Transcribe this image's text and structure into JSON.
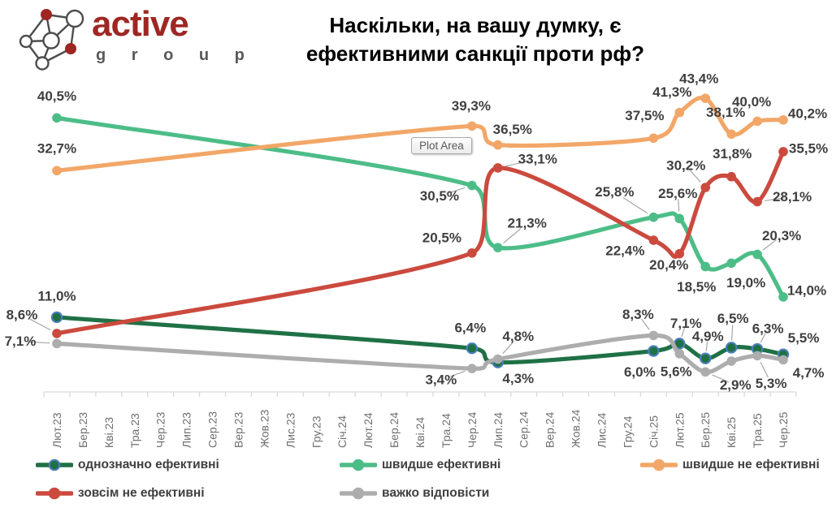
{
  "header": {
    "logo": {
      "brand": "active",
      "sub": "g r o u p",
      "brand_color": "#9E2723",
      "sub_color": "#58595B"
    },
    "title_line1": "Наскільки, на вашу думку, є",
    "title_line2": "ефективними санкції проти рф?"
  },
  "plot_area_tooltip": {
    "label": "Plot Area"
  },
  "axis": {
    "line_color": "#D9D9D9",
    "label_color": "#6F6F6F"
  },
  "label_color": "#3F3F3F",
  "leader_color": "#A6A6A6",
  "chart_data": {
    "type": "line",
    "title": "Наскільки, на вашу думку, є ефективними санкції проти рф?",
    "xlabel": "",
    "ylabel": "",
    "value_suffix": "%",
    "decimal_separator": ",",
    "ylim": [
      0,
      46
    ],
    "grid": false,
    "smoothed": true,
    "legend_position": "bottom",
    "categories": [
      "Лют.23",
      "Бер.23",
      "Кві.23",
      "Тра.23",
      "Чер.23",
      "Лип.23",
      "Сер.23",
      "Вер.23",
      "Жов.23",
      "Лис.23",
      "Гру.23",
      "Січ.24",
      "Лют.24",
      "Бер.24",
      "Кві.24",
      "Тра.24",
      "Чер.24",
      "Лип.24",
      "Сер.24",
      "Вер.24",
      "Жов.24",
      "Лис.24",
      "Гру.24",
      "Січ.25",
      "Лют.25",
      "Бер.25",
      "Кві.25",
      "Тра.25",
      "Чер.25"
    ],
    "series": [
      {
        "name": "однозначно ефективні",
        "color": "#1F7145",
        "marker_ring": "#4E7FBE",
        "points": [
          {
            "category": "Лют.23",
            "value": 11.0,
            "label": "11,0%",
            "dx": 0,
            "dy": -26,
            "leader": false
          },
          {
            "category": "Чер.24",
            "value": 6.4,
            "label": "6,4%",
            "dx": -2,
            "dy": -25,
            "leader": false
          },
          {
            "category": "Лип.24",
            "value": 4.3,
            "label": "4,3%",
            "dx": 25,
            "dy": 20,
            "leader": false
          },
          {
            "category": "Січ.25",
            "value": 6.0,
            "label": "6,0%",
            "dx": -17,
            "dy": 26,
            "leader": false
          },
          {
            "category": "Лют.25",
            "value": 7.1,
            "label": "7,1%",
            "dx": 8,
            "dy": -25,
            "leader": true
          },
          {
            "category": "Бер.25",
            "value": 4.9,
            "label": "4,9%",
            "dx": 3,
            "dy": -27,
            "leader": true
          },
          {
            "category": "Кві.25",
            "value": 6.5,
            "label": "6,5%",
            "dx": 2,
            "dy": -36,
            "leader": true
          },
          {
            "category": "Тра.25",
            "value": 6.3,
            "label": "6,3%",
            "dx": 13,
            "dy": -25,
            "leader": true
          },
          {
            "category": "Чер.25",
            "value": 5.5,
            "label": "5,5%",
            "dx": 25,
            "dy": -20,
            "leader": false
          }
        ]
      },
      {
        "name": "швидше ефективні",
        "color": "#4DBD88",
        "points": [
          {
            "category": "Лют.23",
            "value": 40.5,
            "label": "40,5%",
            "dx": 0,
            "dy": -27,
            "leader": false
          },
          {
            "category": "Чер.24",
            "value": 30.5,
            "label": "30,5%",
            "dx": -40,
            "dy": 13,
            "leader": true
          },
          {
            "category": "Лип.24",
            "value": 21.3,
            "label": "21,3%",
            "dx": 36,
            "dy": -30,
            "leader": true
          },
          {
            "category": "Січ.25",
            "value": 25.8,
            "label": "25,8%",
            "dx": -48,
            "dy": -31,
            "leader": true
          },
          {
            "category": "Лют.25",
            "value": 25.6,
            "label": "25,6%",
            "dx": -2,
            "dy": -31,
            "leader": true
          },
          {
            "category": "Бер.25",
            "value": 18.5,
            "label": "18,5%",
            "dx": -11,
            "dy": 25,
            "leader": false
          },
          {
            "category": "Кві.25",
            "value": 19.0,
            "label": "19,0%",
            "dx": 18,
            "dy": 24,
            "leader": false
          },
          {
            "category": "Тра.25",
            "value": 20.3,
            "label": "20,3%",
            "dx": 30,
            "dy": -23,
            "leader": true
          },
          {
            "category": "Чер.25",
            "value": 14.0,
            "label": "14,0%",
            "dx": 29,
            "dy": -8,
            "leader": false
          }
        ]
      },
      {
        "name": "швидше не ефективні",
        "color": "#F2A768",
        "points": [
          {
            "category": "Лют.23",
            "value": 32.7,
            "label": "32,7%",
            "dx": 0,
            "dy": -27,
            "leader": false
          },
          {
            "category": "Чер.24",
            "value": 39.3,
            "label": "39,3%",
            "dx": -1,
            "dy": -25,
            "leader": false
          },
          {
            "category": "Лип.24",
            "value": 36.5,
            "label": "36,5%",
            "dx": 18,
            "dy": -19,
            "leader": false
          },
          {
            "category": "Січ.25",
            "value": 37.5,
            "label": "37,5%",
            "dx": -11,
            "dy": -28,
            "leader": false
          },
          {
            "category": "Лют.25",
            "value": 41.3,
            "label": "41,3%",
            "dx": -9,
            "dy": -25,
            "leader": false
          },
          {
            "category": "Бер.25",
            "value": 43.4,
            "label": "43,4%",
            "dx": -8,
            "dy": -24,
            "leader": false
          },
          {
            "category": "Кві.25",
            "value": 38.1,
            "label": "38,1%",
            "dx": -7,
            "dy": -27,
            "leader": false
          },
          {
            "category": "Тра.25",
            "value": 40.0,
            "label": "40,0%",
            "dx": -7,
            "dy": -24,
            "leader": false
          },
          {
            "category": "Чер.25",
            "value": 40.2,
            "label": "40,2%",
            "dx": 30,
            "dy": -8,
            "leader": false
          }
        ]
      },
      {
        "name": "зовсім не ефективні",
        "color": "#CB4A3E",
        "points": [
          {
            "category": "Лют.23",
            "value": 8.6,
            "label": "8,6%",
            "dx": -43,
            "dy": -23,
            "leader": true
          },
          {
            "category": "Чер.24",
            "value": 20.5,
            "label": "20,5%",
            "dx": -37,
            "dy": -19,
            "leader": false
          },
          {
            "category": "Лип.24",
            "value": 33.1,
            "label": "33,1%",
            "dx": 49,
            "dy": -11,
            "leader": true
          },
          {
            "category": "Січ.25",
            "value": 22.4,
            "label": "22,4%",
            "dx": -35,
            "dy": 13,
            "leader": false
          },
          {
            "category": "Лют.25",
            "value": 20.4,
            "label": "20,4%",
            "dx": -13,
            "dy": 14,
            "leader": false
          },
          {
            "category": "Бер.25",
            "value": 30.2,
            "label": "30,2%",
            "dx": -24,
            "dy": -27,
            "leader": true
          },
          {
            "category": "Кві.25",
            "value": 31.8,
            "label": "31,8%",
            "dx": 1,
            "dy": -28,
            "leader": false
          },
          {
            "category": "Тра.25",
            "value": 28.1,
            "label": "28,1%",
            "dx": 43,
            "dy": -6,
            "leader": true
          },
          {
            "category": "Чер.25",
            "value": 35.5,
            "label": "35,5%",
            "dx": 31,
            "dy": -4,
            "leader": false
          }
        ]
      },
      {
        "name": "важко відповісти",
        "color": "#ADADAD",
        "points": [
          {
            "category": "Лют.23",
            "value": 7.1,
            "label": "7,1%",
            "dx": -45,
            "dy": -3,
            "leader": true
          },
          {
            "category": "Чер.24",
            "value": 3.4,
            "label": "3,4%",
            "dx": -38,
            "dy": 14,
            "leader": true
          },
          {
            "category": "Лип.24",
            "value": 4.8,
            "label": "4,8%",
            "dx": 25,
            "dy": -28,
            "leader": true
          },
          {
            "category": "Січ.25",
            "value": 8.3,
            "label": "8,3%",
            "dx": -19,
            "dy": -26,
            "leader": true
          },
          {
            "category": "Лют.25",
            "value": 5.6,
            "label": "5,6%",
            "dx": -4,
            "dy": 22,
            "leader": false
          },
          {
            "category": "Бер.25",
            "value": 2.9,
            "label": "2,9%",
            "dx": 37,
            "dy": 16,
            "leader": true
          },
          {
            "category": "Кві.25",
            "value": 4.5,
            "label": "",
            "dx": 0,
            "dy": 0,
            "leader": false
          },
          {
            "category": "Тра.25",
            "value": 5.3,
            "label": "5,3%",
            "dx": 17,
            "dy": 34,
            "leader": true
          },
          {
            "category": "Чер.25",
            "value": 4.7,
            "label": "4,7%",
            "dx": 31,
            "dy": 16,
            "leader": false
          }
        ]
      }
    ]
  }
}
